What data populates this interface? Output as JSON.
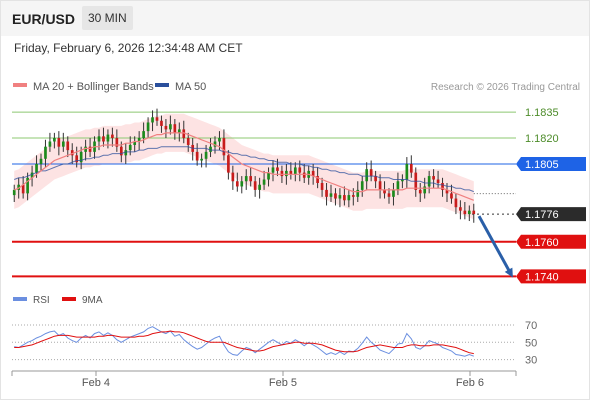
{
  "header": {
    "symbol": "EUR/USD",
    "interval": "30 MIN",
    "datetime": "Friday, February 6, 2026 12:34:48 AM CET"
  },
  "legend": {
    "ma20_label": "MA 20 + Bollinger Bands",
    "ma50_label": "MA 50",
    "credit": "Research © 2026 Trading Central",
    "rsi_label": "RSI",
    "rsi_ma_label": "9MA"
  },
  "colors": {
    "ma20": "#f08080",
    "ma50": "#2a4f9c",
    "band_fill": "#fde3e3",
    "candle_up": "#1c8a1c",
    "candle_down": "#c81c1c",
    "resistance_green": "#8cc870",
    "pivot_blue": "#1e63e6",
    "support_red": "#e01010",
    "price_tag": "#2b2b2b",
    "arrow": "#2a5fa8",
    "rsi": "#6b8fe0",
    "rsi_ma": "#e01010"
  },
  "chart_data": [
    {
      "type": "candlestick",
      "title": "",
      "x_ticks": [
        "Feb 4",
        "Feb 5",
        "Feb 6"
      ],
      "ylim": [
        1.1735,
        1.1842
      ],
      "levels": [
        {
          "value": 1.1835,
          "label": "1.1835",
          "kind": "resistance"
        },
        {
          "value": 1.182,
          "label": "1.1820",
          "kind": "resistance"
        },
        {
          "value": 1.1805,
          "label": "1.1805",
          "kind": "pivot"
        },
        {
          "value": 1.1776,
          "label": "1.1776",
          "kind": "last_price"
        },
        {
          "value": 1.176,
          "label": "1.1760",
          "kind": "support"
        },
        {
          "value": 1.174,
          "label": "1.1740",
          "kind": "support"
        }
      ],
      "close": [
        1.179,
        1.1793,
        1.1788,
        1.1797,
        1.18,
        1.1805,
        1.1808,
        1.1815,
        1.1818,
        1.182,
        1.1815,
        1.1818,
        1.1813,
        1.181,
        1.1806,
        1.1812,
        1.1815,
        1.1812,
        1.1818,
        1.1821,
        1.1818,
        1.1822,
        1.182,
        1.1815,
        1.181,
        1.1813,
        1.1816,
        1.1818,
        1.182,
        1.1824,
        1.1829,
        1.1832,
        1.183,
        1.1827,
        1.1825,
        1.1828,
        1.1823,
        1.1825,
        1.182,
        1.1816,
        1.1812,
        1.1807,
        1.1808,
        1.1812,
        1.1815,
        1.1818,
        1.182,
        1.181,
        1.18,
        1.1795,
        1.1792,
        1.1795,
        1.1798,
        1.1795,
        1.179,
        1.1793,
        1.1796,
        1.18,
        1.1803,
        1.1801,
        1.1798,
        1.1801,
        1.1799,
        1.1803,
        1.18,
        1.1797,
        1.1801,
        1.1798,
        1.1794,
        1.179,
        1.1786,
        1.1788,
        1.1785,
        1.1787,
        1.1784,
        1.1787,
        1.1786,
        1.179,
        1.1795,
        1.1802,
        1.1798,
        1.1795,
        1.179,
        1.1788,
        1.1786,
        1.179,
        1.1795,
        1.1796,
        1.1805,
        1.18,
        1.179,
        1.1788,
        1.1792,
        1.1798,
        1.1796,
        1.1794,
        1.179,
        1.1788,
        1.1785,
        1.178,
        1.1778,
        1.1776,
        1.1778,
        1.1776
      ],
      "ma20": [
        1.179,
        1.1791,
        1.1793,
        1.1795,
        1.1797,
        1.1799,
        1.1801,
        1.1803,
        1.1805,
        1.1807,
        1.1808,
        1.1809,
        1.181,
        1.1811,
        1.1812,
        1.1813,
        1.1814,
        1.1814,
        1.1815,
        1.1815,
        1.1816,
        1.1816,
        1.1816,
        1.1816,
        1.1816,
        1.1817,
        1.1817,
        1.1818,
        1.1818,
        1.1819,
        1.182,
        1.1821,
        1.1822,
        1.1822,
        1.1823,
        1.1823,
        1.1823,
        1.1823,
        1.1823,
        1.1822,
        1.1821,
        1.182,
        1.1819,
        1.1818,
        1.1817,
        1.1816,
        1.1815,
        1.1813,
        1.1811,
        1.1809,
        1.1807,
        1.1805,
        1.1804,
        1.1803,
        1.1802,
        1.1801,
        1.18,
        1.18,
        1.1799,
        1.1799,
        1.1799,
        1.1799,
        1.1799,
        1.1799,
        1.1799,
        1.1799,
        1.1799,
        1.1798,
        1.1797,
        1.1796,
        1.1795,
        1.1794,
        1.1793,
        1.1792,
        1.1791,
        1.179,
        1.1789,
        1.1789,
        1.1789,
        1.179,
        1.179,
        1.179,
        1.179,
        1.179,
        1.179,
        1.179,
        1.179,
        1.179,
        1.1791,
        1.1791,
        1.1791,
        1.1791,
        1.1791,
        1.1791,
        1.1791,
        1.1791,
        1.1791,
        1.179,
        1.1789,
        1.1788,
        1.1787,
        1.1786,
        1.1785,
        1.1784
      ],
      "ma50": [
        1.1796,
        1.1797,
        1.1797,
        1.1798,
        1.1799,
        1.18,
        1.1801,
        1.1801,
        1.1802,
        1.1803,
        1.1804,
        1.1805,
        1.1805,
        1.1806,
        1.1807,
        1.1807,
        1.1808,
        1.1808,
        1.1809,
        1.1809,
        1.181,
        1.181,
        1.1811,
        1.1811,
        1.1811,
        1.1812,
        1.1812,
        1.1812,
        1.1813,
        1.1813,
        1.1814,
        1.1814,
        1.1814,
        1.1815,
        1.1815,
        1.1815,
        1.1815,
        1.1815,
        1.1815,
        1.1815,
        1.1814,
        1.1814,
        1.1814,
        1.1814,
        1.1813,
        1.1813,
        1.1813,
        1.1812,
        1.1812,
        1.1811,
        1.1811,
        1.181,
        1.181,
        1.1809,
        1.1809,
        1.1808,
        1.1808,
        1.1807,
        1.1807,
        1.1806,
        1.1806,
        1.1806,
        1.1805,
        1.1805,
        1.1805,
        1.1804,
        1.1804,
        1.1803,
        1.1803,
        1.1802,
        1.1802,
        1.1801,
        1.1801,
        1.18,
        1.18,
        1.1799,
        1.1799,
        1.1799,
        1.1798,
        1.1798,
        1.1798,
        1.1798,
        1.1797,
        1.1797,
        1.1797,
        1.1796,
        1.1796,
        1.1796,
        1.1796,
        1.1795,
        1.1795,
        1.1795,
        1.1794,
        1.1794,
        1.1794,
        1.1793,
        1.1793,
        1.1792,
        1.1792,
        1.1791,
        1.1791,
        1.179,
        1.179,
        1.1789
      ],
      "band_width": 0.0011,
      "projection": {
        "from": 1.1776,
        "to": 1.174
      }
    },
    {
      "type": "line",
      "title": "",
      "y_ticks": [
        70,
        50,
        30
      ],
      "ylim": [
        25,
        78
      ],
      "series": [
        {
          "name": "RSI",
          "values": [
            45,
            44,
            47,
            50,
            52,
            55,
            57,
            60,
            62,
            63,
            58,
            60,
            55,
            52,
            50,
            55,
            58,
            55,
            60,
            62,
            58,
            61,
            58,
            53,
            50,
            53,
            56,
            58,
            60,
            62,
            66,
            68,
            65,
            62,
            60,
            63,
            57,
            59,
            53,
            49,
            45,
            42,
            44,
            48,
            52,
            55,
            57,
            47,
            39,
            36,
            35,
            40,
            44,
            42,
            38,
            42,
            46,
            50,
            53,
            50,
            47,
            51,
            49,
            53,
            50,
            46,
            50,
            47,
            44,
            40,
            36,
            38,
            36,
            39,
            36,
            40,
            39,
            43,
            49,
            56,
            50,
            46,
            41,
            39,
            37,
            42,
            48,
            49,
            60,
            54,
            44,
            42,
            46,
            52,
            50,
            48,
            44,
            42,
            40,
            36,
            35,
            34,
            36,
            34
          ]
        },
        {
          "name": "9MA",
          "values": [
            44,
            44,
            45,
            46,
            47,
            49,
            51,
            53,
            55,
            57,
            58,
            58,
            58,
            57,
            56,
            56,
            56,
            56,
            56,
            57,
            57,
            58,
            58,
            57,
            56,
            56,
            56,
            56,
            57,
            57,
            58,
            60,
            61,
            62,
            62,
            63,
            62,
            62,
            61,
            59,
            57,
            55,
            53,
            51,
            50,
            50,
            50,
            50,
            48,
            46,
            44,
            43,
            42,
            41,
            40,
            40,
            41,
            43,
            45,
            46,
            47,
            48,
            49,
            50,
            50,
            49,
            49,
            49,
            48,
            47,
            45,
            43,
            41,
            40,
            39,
            39,
            39,
            40,
            42,
            44,
            45,
            46,
            47,
            46,
            45,
            44,
            44,
            44,
            46,
            47,
            47,
            46,
            46,
            46,
            47,
            47,
            47,
            46,
            45,
            44,
            42,
            40,
            38,
            37
          ]
        }
      ]
    }
  ]
}
